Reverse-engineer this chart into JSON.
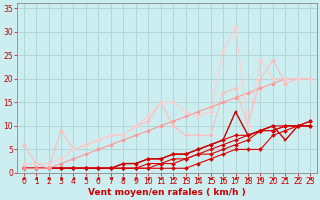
{
  "title": "",
  "xlabel": "Vent moyen/en rafales ( km/h )",
  "ylabel": "",
  "bg_color": "#cceef0",
  "grid_color": "#aacccc",
  "axis_color": "#888888",
  "xlim": [
    -0.5,
    23.5
  ],
  "ylim": [
    0,
    36
  ],
  "xticks": [
    0,
    1,
    2,
    3,
    4,
    5,
    6,
    7,
    8,
    9,
    10,
    11,
    12,
    13,
    14,
    15,
    16,
    17,
    18,
    19,
    20,
    21,
    22,
    23
  ],
  "yticks": [
    0,
    5,
    10,
    15,
    20,
    25,
    30,
    35
  ],
  "lines": [
    {
      "x": [
        0,
        1,
        2,
        3,
        4,
        5,
        6,
        7,
        8,
        9,
        10,
        11,
        12,
        13,
        14,
        15,
        16,
        17,
        18,
        19,
        20,
        21,
        22,
        23
      ],
      "y": [
        1,
        1,
        1,
        1,
        1,
        1,
        1,
        1,
        1,
        1,
        1,
        1,
        1,
        1,
        2,
        3,
        4,
        5,
        5,
        5,
        8,
        9,
        10,
        10
      ],
      "color": "#dd0000",
      "lw": 0.8,
      "marker": "D",
      "ms": 2.0
    },
    {
      "x": [
        0,
        1,
        2,
        3,
        4,
        5,
        6,
        7,
        8,
        9,
        10,
        11,
        12,
        13,
        14,
        15,
        16,
        17,
        18,
        19,
        20,
        21,
        22,
        23
      ],
      "y": [
        1,
        1,
        1,
        1,
        1,
        1,
        1,
        1,
        1,
        1,
        1,
        2,
        2,
        3,
        4,
        4,
        5,
        6,
        7,
        9,
        10,
        10,
        10,
        10
      ],
      "color": "#dd0000",
      "lw": 0.8,
      "marker": "D",
      "ms": 2.0
    },
    {
      "x": [
        0,
        1,
        2,
        3,
        4,
        5,
        6,
        7,
        8,
        9,
        10,
        11,
        12,
        13,
        14,
        15,
        16,
        17,
        18,
        19,
        20,
        21,
        22,
        23
      ],
      "y": [
        1,
        1,
        1,
        1,
        1,
        1,
        1,
        1,
        1,
        1,
        2,
        2,
        3,
        3,
        4,
        5,
        6,
        7,
        8,
        9,
        9,
        10,
        10,
        11
      ],
      "color": "#dd0000",
      "lw": 0.8,
      "marker": "D",
      "ms": 2.0
    },
    {
      "x": [
        0,
        1,
        2,
        3,
        4,
        5,
        6,
        7,
        8,
        9,
        10,
        11,
        12,
        13,
        14,
        15,
        16,
        17,
        18,
        19,
        20,
        21,
        22,
        23
      ],
      "y": [
        1,
        1,
        1,
        1,
        1,
        1,
        1,
        1,
        2,
        2,
        3,
        3,
        4,
        4,
        5,
        6,
        7,
        8,
        8,
        9,
        9,
        10,
        10,
        11
      ],
      "color": "#dd0000",
      "lw": 0.8,
      "marker": "D",
      "ms": 2.0
    },
    {
      "x": [
        0,
        1,
        2,
        3,
        4,
        5,
        6,
        7,
        8,
        9,
        10,
        11,
        12,
        13,
        14,
        15,
        16,
        17,
        18,
        19,
        20,
        21,
        22,
        23
      ],
      "y": [
        1,
        1,
        1,
        1,
        1,
        1,
        1,
        1,
        2,
        2,
        3,
        3,
        4,
        4,
        5,
        6,
        7,
        13,
        8,
        9,
        10,
        7,
        10,
        10
      ],
      "color": "#cc0000",
      "lw": 1.0,
      "marker": "s",
      "ms": 2.0
    },
    {
      "x": [
        0,
        1,
        2,
        3,
        4,
        5,
        6,
        7,
        8,
        9,
        10,
        11,
        12,
        13,
        14,
        15,
        16,
        17,
        18,
        19,
        20,
        21,
        22,
        23
      ],
      "y": [
        6,
        2,
        1,
        9,
        5,
        6,
        7,
        8,
        8,
        10,
        11,
        15,
        10,
        8,
        8,
        8,
        17,
        18,
        10,
        20,
        24,
        19,
        20,
        20
      ],
      "color": "#ffbbbb",
      "lw": 0.8,
      "marker": "D",
      "ms": 2.0
    },
    {
      "x": [
        0,
        1,
        2,
        3,
        4,
        5,
        6,
        7,
        8,
        9,
        10,
        11,
        12,
        13,
        14,
        15,
        16,
        17,
        18,
        19,
        20,
        21,
        22,
        23
      ],
      "y": [
        1,
        1,
        1,
        2,
        3,
        4,
        5,
        6,
        7,
        8,
        9,
        10,
        11,
        12,
        13,
        14,
        15,
        16,
        17,
        18,
        19,
        20,
        20,
        20
      ],
      "color": "#ff9999",
      "lw": 0.8,
      "marker": "D",
      "ms": 2.0
    },
    {
      "x": [
        0,
        1,
        2,
        3,
        4,
        5,
        6,
        7,
        8,
        9,
        10,
        11,
        12,
        13,
        14,
        15,
        16,
        17,
        18,
        19,
        20,
        21,
        22,
        23
      ],
      "y": [
        2,
        2,
        2,
        3,
        5,
        6,
        7,
        8,
        8,
        10,
        12,
        15,
        15,
        13,
        12,
        13,
        26,
        31,
        10,
        24,
        20,
        20,
        20,
        20
      ],
      "color": "#ffcccc",
      "lw": 0.8,
      "marker": "D",
      "ms": 2.0
    }
  ],
  "xlabel_color": "#cc0000",
  "tick_color": "#cc0000",
  "label_fontsize": 6.5,
  "tick_fontsize": 5.5
}
